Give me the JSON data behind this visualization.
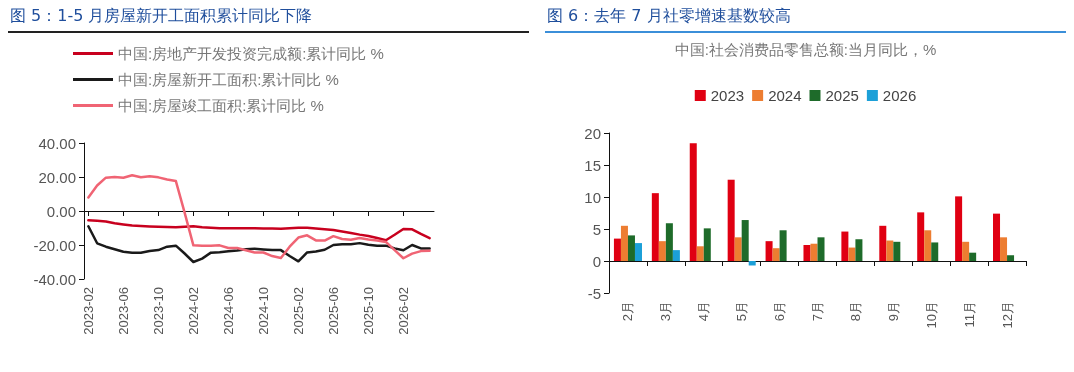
{
  "chart_data": [
    {
      "type": "line",
      "title": "图 5：1-5 月房屋新开工面积累计同比下降",
      "categories": [
        "2023-02",
        null,
        null,
        null,
        "2023-06",
        null,
        null,
        null,
        "2023-10",
        null,
        null,
        null,
        "2024-02",
        null,
        null,
        null,
        "2024-06",
        null,
        null,
        null,
        "2024-10",
        null,
        null,
        null,
        "2025-02",
        null,
        null,
        null,
        "2025-06",
        null,
        null,
        null,
        "2025-10",
        null,
        null,
        null,
        "2026-02",
        null,
        null,
        null
      ],
      "series": [
        {
          "name": "中国:房地产开发投资完成额:累计同比 %",
          "color": "#c8001e",
          "values": [
            -5.5,
            -5.8,
            -6.2,
            -7.2,
            -7.9,
            -8.5,
            -8.8,
            -9.1,
            -9.3,
            -9.4,
            -9.6,
            -9.3,
            -9.0,
            -9.5,
            -9.8,
            -10.1,
            -10.1,
            -10.2,
            -10.2,
            -10.2,
            -10.3,
            -10.3,
            -10.5,
            -10.2,
            -9.8,
            -9.9,
            -10.3,
            -10.7,
            -11.2,
            -12.0,
            -12.9,
            -13.9,
            -14.7,
            -15.9,
            -17.2,
            -14.0,
            -10.6,
            -10.8,
            -13.5,
            -16.0
          ]
        },
        {
          "name": "中国:房屋新开工面积:累计同比 %",
          "color": "#1a1a1a",
          "values": [
            -9,
            -19,
            -21,
            -22.5,
            -24,
            -24.5,
            -24.5,
            -23.5,
            -23,
            -21,
            -20.4,
            -25,
            -30,
            -28,
            -24.5,
            -24.2,
            -23.7,
            -23.2,
            -22.5,
            -22.2,
            -22.6,
            -23,
            -23,
            -26.5,
            -29.6,
            -24.4,
            -23.8,
            -22.8,
            -20,
            -19.6,
            -19.5,
            -18.9,
            -19.8,
            -20.5,
            -20.4,
            -22,
            -23.1,
            -20,
            -22,
            -22
          ]
        },
        {
          "name": "中国:房屋竣工面积:累计同比 %",
          "color": "#f06474",
          "values": [
            8.0,
            15,
            19.6,
            20,
            19.6,
            21,
            19.8,
            20.5,
            19.8,
            18.5,
            17.6,
            -1,
            -20.2,
            -20.4,
            -20.4,
            -20.2,
            -21.8,
            -21.8,
            -23.1,
            -24.4,
            -24.4,
            -26.5,
            -27.7,
            -21,
            -15.6,
            -14.3,
            -17.3,
            -17.4,
            -14.8,
            -16.5,
            -16.9,
            -15.9,
            -16.8,
            -17.4,
            -18.2,
            -23,
            -27.8,
            -25.1,
            -23.6,
            -23.4
          ]
        }
      ],
      "ylim": [
        -40,
        40
      ],
      "yticks": [
        {
          "value": -40,
          "label": "-40.00"
        },
        {
          "value": -20,
          "label": "-20.00"
        },
        {
          "value": 0,
          "label": "0.00"
        },
        {
          "value": 20,
          "label": "20.00"
        },
        {
          "value": 40,
          "label": "40.00"
        }
      ],
      "legend": "top left",
      "marker": "none"
    },
    {
      "type": "bar",
      "title": "图 6：去年 7 月社零增速基数较高",
      "subtitle": "中国:社会消费品零售总额:当月同比，%",
      "categories": [
        "2月",
        "3月",
        "4月",
        "5月",
        "6月",
        "7月",
        "8月",
        "9月",
        "10月",
        "11月",
        "12月"
      ],
      "series": [
        {
          "name": "2023",
          "color": "#e00012",
          "values": [
            3.5,
            10.6,
            18.4,
            12.7,
            3.1,
            2.5,
            4.6,
            5.5,
            7.6,
            10.1,
            7.4
          ]
        },
        {
          "name": "2024",
          "color": "#ed7d31",
          "values": [
            5.5,
            3.1,
            2.3,
            3.7,
            2.0,
            2.7,
            2.1,
            3.2,
            4.8,
            3.0,
            3.7
          ]
        },
        {
          "name": "2025",
          "color": "#1e6b2a",
          "values": [
            4.0,
            5.9,
            5.1,
            6.4,
            4.8,
            3.7,
            3.4,
            3.0,
            2.9,
            1.3,
            0.9
          ]
        },
        {
          "name": "2026",
          "color": "#1ca0d8",
          "values": [
            2.8,
            1.7,
            null,
            -0.7,
            null,
            null,
            null,
            null,
            null,
            null,
            null
          ]
        }
      ],
      "ylim": [
        -5,
        20
      ],
      "yticks": [
        -5,
        0,
        5,
        10,
        15,
        20
      ],
      "legend": "top"
    }
  ]
}
